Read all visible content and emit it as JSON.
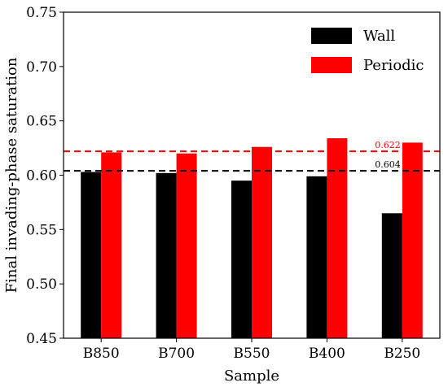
{
  "chart_data": {
    "type": "bar",
    "categories": [
      "B850",
      "B700",
      "B550",
      "B400",
      "B250"
    ],
    "series": [
      {
        "name": "Wall",
        "color": "#000000",
        "values": [
          0.603,
          0.602,
          0.595,
          0.599,
          0.565
        ]
      },
      {
        "name": "Periodic",
        "color": "#ff0000",
        "values": [
          0.621,
          0.62,
          0.626,
          0.634,
          0.63
        ]
      }
    ],
    "xlabel": "Sample",
    "ylabel": "Final invading-phase saturation",
    "ylim": [
      0.45,
      0.75
    ],
    "yticks": [
      "0.45",
      "0.50",
      "0.55",
      "0.60",
      "0.65",
      "0.70",
      "0.75"
    ],
    "grid": false,
    "legend_position": "top-right",
    "reference_lines": [
      {
        "value": 0.622,
        "label": "0.622",
        "color": "#ff0000",
        "style": "dashed"
      },
      {
        "value": 0.604,
        "label": "0.604",
        "color": "#000000",
        "style": "dashed"
      }
    ]
  }
}
